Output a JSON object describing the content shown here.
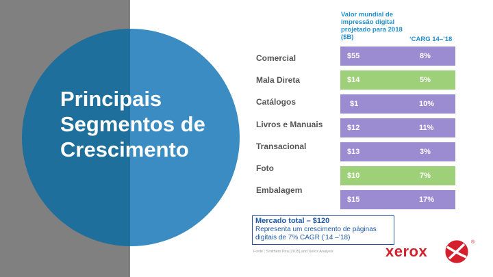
{
  "title": [
    "Principais",
    "Segmentos de",
    "Crescimento"
  ],
  "header_value": [
    "Valor mundial de",
    "impressão digital",
    "projetado para 2018",
    "($B)"
  ],
  "header_cagr": "‘CARG 14–’18",
  "rows": [
    {
      "label": "Comercial",
      "value": "$55",
      "cagr": "8%",
      "color": "#9b8cd1"
    },
    {
      "label": "Mala Direta",
      "value": "$14",
      "cagr": "5%",
      "color": "#9ed07a"
    },
    {
      "label": "Catálogos",
      "value": "$1",
      "cagr": "10%",
      "color": "#9b8cd1"
    },
    {
      "label": "Livros e Manuais",
      "value": "$12",
      "cagr": "11%",
      "color": "#9b8cd1"
    },
    {
      "label": "Transacional",
      "value": "$13",
      "cagr": "3%",
      "color": "#9b8cd1"
    },
    {
      "label": "Foto",
      "value": "$10",
      "cagr": "7%",
      "color": "#9ed07a"
    },
    {
      "label": "Embalagem",
      "value": "$15",
      "cagr": "17%",
      "color": "#9b8cd1"
    }
  ],
  "total": {
    "title": "Mercado total – $120",
    "line1": "Representa um crescimento de páginas",
    "line2": "digitais de  7% CAGR (’14 –’18)"
  },
  "source": "Fonte : Smithers Pira [2015] and Xerox Analysis",
  "logo": {
    "text": "xerox",
    "reg": "®",
    "color": "#d4202c"
  }
}
